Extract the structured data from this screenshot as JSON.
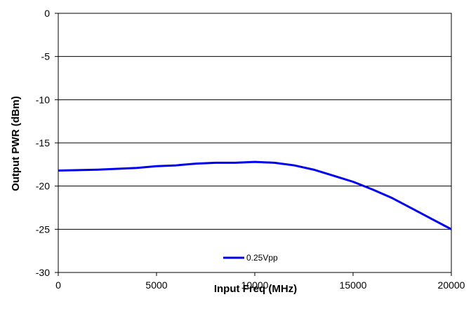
{
  "chart_data": {
    "type": "line",
    "title": "",
    "xlabel": "Input Freq (MHz)",
    "ylabel": "Output PWR (dBm)",
    "xlim": [
      0,
      20000
    ],
    "ylim": [
      -30,
      0
    ],
    "x_ticks": [
      0,
      5000,
      10000,
      15000,
      20000
    ],
    "y_ticks": [
      0,
      -5,
      -10,
      -15,
      -20,
      -25,
      -30
    ],
    "grid": "horizontal",
    "legend": "bottom-center",
    "series": [
      {
        "name": "0.25Vpp",
        "color": "#0000ee",
        "x": [
          0,
          1000,
          2000,
          3000,
          4000,
          5000,
          6000,
          7000,
          8000,
          9000,
          10000,
          11000,
          12000,
          13000,
          14000,
          15000,
          16000,
          17000,
          18000,
          19000,
          20000
        ],
        "y": [
          -18.2,
          -18.15,
          -18.1,
          -18.0,
          -17.9,
          -17.7,
          -17.6,
          -17.4,
          -17.3,
          -17.3,
          -17.2,
          -17.3,
          -17.6,
          -18.1,
          -18.8,
          -19.5,
          -20.4,
          -21.4,
          -22.6,
          -23.8,
          -25.0
        ]
      }
    ]
  }
}
